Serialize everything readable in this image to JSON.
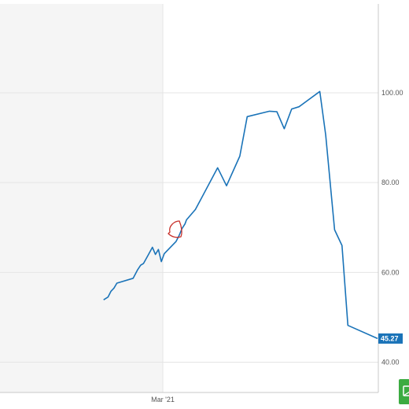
{
  "chart_data": {
    "type": "line",
    "title": "",
    "xlabel": "",
    "ylabel": "",
    "x_ticks": [
      "Mar '21"
    ],
    "y_ticks": [
      "40.00",
      "60.00",
      "80.00",
      "100.00"
    ],
    "ylim": [
      37.5,
      121.5
    ],
    "y_axis_position": "right",
    "grid": true,
    "last_value_label": "45.27",
    "series": [
      {
        "color": "#1a73b8",
        "points": [
          {
            "x": -0.4,
            "y": 53.9
          },
          {
            "x": -0.37,
            "y": 54.5
          },
          {
            "x": -0.35,
            "y": 55.8
          },
          {
            "x": -0.33,
            "y": 56.5
          },
          {
            "x": -0.31,
            "y": 57.6
          },
          {
            "x": -0.2,
            "y": 58.7
          },
          {
            "x": -0.17,
            "y": 60.6
          },
          {
            "x": -0.15,
            "y": 61.6
          },
          {
            "x": -0.13,
            "y": 62.0
          },
          {
            "x": -0.1,
            "y": 63.8
          },
          {
            "x": -0.07,
            "y": 65.6
          },
          {
            "x": -0.05,
            "y": 64.0
          },
          {
            "x": -0.03,
            "y": 65.1
          },
          {
            "x": -0.01,
            "y": 62.4
          },
          {
            "x": 0.01,
            "y": 64.2
          },
          {
            "x": 0.09,
            "y": 66.9
          },
          {
            "x": 0.11,
            "y": 68.2
          },
          {
            "x": 0.13,
            "y": 69.8
          },
          {
            "x": 0.15,
            "y": 70.8
          },
          {
            "x": 0.16,
            "y": 71.7
          },
          {
            "x": 0.22,
            "y": 74.0
          },
          {
            "x": 0.37,
            "y": 83.3
          },
          {
            "x": 0.43,
            "y": 79.3
          },
          {
            "x": 0.52,
            "y": 85.9
          },
          {
            "x": 0.57,
            "y": 94.7
          },
          {
            "x": 0.72,
            "y": 95.9
          },
          {
            "x": 0.77,
            "y": 95.8
          },
          {
            "x": 0.82,
            "y": 92.0
          },
          {
            "x": 0.87,
            "y": 96.4
          },
          {
            "x": 0.92,
            "y": 96.9
          },
          {
            "x": 1.06,
            "y": 100.3
          },
          {
            "x": 1.1,
            "y": 90.6
          },
          {
            "x": 1.16,
            "y": 69.5
          },
          {
            "x": 1.21,
            "y": 66.0
          },
          {
            "x": 1.25,
            "y": 48.2
          },
          {
            "x": 1.45,
            "y": 45.27
          }
        ]
      }
    ],
    "annotation": {
      "shape": "hand-drawn circle",
      "color": "#c8302a"
    }
  },
  "colors": {
    "line": "#1a73b8",
    "grid": "#e5e5e5",
    "plot_area_left": "#f5f5f5",
    "axis": "#c8c8c8",
    "last_value_bg": "#1a73b8",
    "annotation": "#c8302a",
    "corner_button": "#3cab41"
  },
  "icons": {
    "corner_button": "chat-icon"
  }
}
